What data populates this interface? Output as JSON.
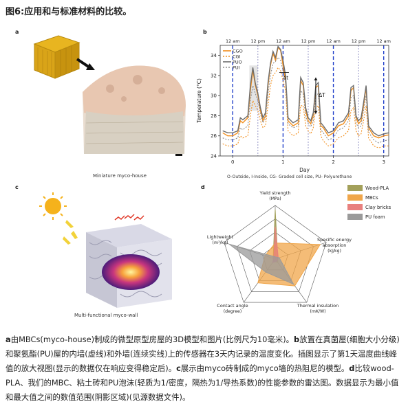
{
  "figure_title": "图6:应用和与标准材料的比较。",
  "panels": {
    "a": {
      "label": "a",
      "caption": "Miniature myco-house"
    },
    "b": {
      "label": "b",
      "footnote": "O-Outside, I-Inside, CG- Graded cell size, PU- Polyurethane"
    },
    "c": {
      "label": "c",
      "caption": "Multi-functional myco-wall"
    },
    "d": {
      "label": "d"
    }
  },
  "chart_data": [
    {
      "type": "line",
      "ylabel": "Temperature (°C)",
      "xlabel": "Day",
      "ylim": [
        24,
        35
      ],
      "yticks": [
        "24",
        "26",
        "28",
        "30",
        "32",
        "34"
      ],
      "xlim": [
        -0.25,
        3.1
      ],
      "xticks": [
        "0",
        "1",
        "2",
        "3"
      ],
      "top_labels": [
        {
          "x": 0,
          "text": "12 am"
        },
        {
          "x": 0.5,
          "text": "12 pm"
        },
        {
          "x": 1,
          "text": "12 am"
        },
        {
          "x": 1.5,
          "text": "12 pm"
        },
        {
          "x": 2,
          "text": "12 am"
        },
        {
          "x": 2.5,
          "text": "12 pm"
        },
        {
          "x": 3,
          "text": "12 am"
        }
      ],
      "annotations": [
        "δt",
        "ΔT"
      ],
      "series": [
        {
          "name": "CGO",
          "color": "#f28e1c",
          "style": "solid",
          "x": [
            -0.2,
            -0.1,
            0,
            0.1,
            0.15,
            0.2,
            0.3,
            0.35,
            0.4,
            0.45,
            0.5,
            0.55,
            0.6,
            0.65,
            0.7,
            0.75,
            0.8,
            0.85,
            0.9,
            0.95,
            1.0,
            1.05,
            1.1,
            1.2,
            1.3,
            1.35,
            1.4,
            1.45,
            1.5,
            1.55,
            1.6,
            1.65,
            1.7,
            1.75,
            1.8,
            1.9,
            2.0,
            2.1,
            2.2,
            2.3,
            2.35,
            2.4,
            2.45,
            2.5,
            2.55,
            2.6,
            2.65,
            2.7,
            2.8,
            2.9,
            3.0,
            3.1
          ],
          "y": [
            26.3,
            26.0,
            26.0,
            26.3,
            27.5,
            27.3,
            27.8,
            30.5,
            32.5,
            31.0,
            30.0,
            28.5,
            27.5,
            28.0,
            31.0,
            33.0,
            34.2,
            33.5,
            34.8,
            34.5,
            33.0,
            31.5,
            27.5,
            27.0,
            27.3,
            31.5,
            31.0,
            28.5,
            27.5,
            27.2,
            28.0,
            30.8,
            31.0,
            27.0,
            26.8,
            26.0,
            26.3,
            27.0,
            27.2,
            28.0,
            30.5,
            30.8,
            27.8,
            27.2,
            27.5,
            29.0,
            30.8,
            26.8,
            26.0,
            25.8,
            26.0,
            26.1
          ]
        },
        {
          "name": "CGI",
          "color": "#f28e1c",
          "style": "dashed",
          "x": [
            -0.2,
            -0.1,
            0,
            0.1,
            0.15,
            0.2,
            0.3,
            0.35,
            0.4,
            0.45,
            0.5,
            0.55,
            0.6,
            0.65,
            0.7,
            0.75,
            0.8,
            0.85,
            0.9,
            0.95,
            1.0,
            1.05,
            1.1,
            1.2,
            1.3,
            1.35,
            1.4,
            1.45,
            1.5,
            1.55,
            1.6,
            1.65,
            1.7,
            1.75,
            1.8,
            1.9,
            2.0,
            2.1,
            2.2,
            2.3,
            2.35,
            2.4,
            2.45,
            2.5,
            2.55,
            2.6,
            2.65,
            2.7,
            2.8,
            2.9,
            3.0,
            3.1
          ],
          "y": [
            25.2,
            25.0,
            25.0,
            25.2,
            26.0,
            25.8,
            26.0,
            28.0,
            29.5,
            29.0,
            28.5,
            27.5,
            26.8,
            27.0,
            29.0,
            31.0,
            32.0,
            32.3,
            32.8,
            32.5,
            31.5,
            30.5,
            26.5,
            26.0,
            26.3,
            29.0,
            29.0,
            27.0,
            26.5,
            26.2,
            26.8,
            28.8,
            29.0,
            26.0,
            25.5,
            25.0,
            25.2,
            25.8,
            26.0,
            26.5,
            28.5,
            28.8,
            26.5,
            26.0,
            26.2,
            27.5,
            29.0,
            25.8,
            25.0,
            24.8,
            25.0,
            25.0
          ]
        },
        {
          "name": "PUO",
          "color": "#6d6d6d",
          "style": "solid",
          "x": [
            -0.2,
            -0.1,
            0,
            0.1,
            0.15,
            0.2,
            0.3,
            0.35,
            0.4,
            0.45,
            0.5,
            0.55,
            0.6,
            0.65,
            0.7,
            0.75,
            0.8,
            0.85,
            0.9,
            0.95,
            1.0,
            1.05,
            1.1,
            1.2,
            1.3,
            1.35,
            1.4,
            1.45,
            1.5,
            1.55,
            1.6,
            1.65,
            1.7,
            1.75,
            1.8,
            1.9,
            2.0,
            2.1,
            2.2,
            2.3,
            2.35,
            2.4,
            2.45,
            2.5,
            2.55,
            2.6,
            2.65,
            2.7,
            2.8,
            2.9,
            3.0,
            3.1
          ],
          "y": [
            26.5,
            26.3,
            26.3,
            26.5,
            27.8,
            27.6,
            28.0,
            31.0,
            32.8,
            31.2,
            30.2,
            28.8,
            27.8,
            28.3,
            31.3,
            33.2,
            34.4,
            33.8,
            34.9,
            34.6,
            33.5,
            32.0,
            27.8,
            27.3,
            27.6,
            31.8,
            31.3,
            28.8,
            27.8,
            27.5,
            28.3,
            31.0,
            31.3,
            27.3,
            27.0,
            26.3,
            26.5,
            27.3,
            27.5,
            28.3,
            30.8,
            31.0,
            28.0,
            27.5,
            27.8,
            29.3,
            31.0,
            27.0,
            26.3,
            26.0,
            26.2,
            26.3
          ]
        },
        {
          "name": "PUI",
          "color": "#8a8a8a",
          "style": "dashed",
          "x": [
            -0.2,
            -0.1,
            0,
            0.1,
            0.15,
            0.2,
            0.3,
            0.35,
            0.4,
            0.45,
            0.5,
            0.55,
            0.6,
            0.65,
            0.7,
            0.75,
            0.8,
            0.85,
            0.9,
            0.95,
            1.0,
            1.05,
            1.1,
            1.2,
            1.3,
            1.35,
            1.4,
            1.45,
            1.5,
            1.55,
            1.6,
            1.65,
            1.7,
            1.75,
            1.8,
            1.9,
            2.0,
            2.1,
            2.2,
            2.3,
            2.35,
            2.4,
            2.45,
            2.5,
            2.55,
            2.6,
            2.65,
            2.7,
            2.8,
            2.9,
            3.0,
            3.1
          ],
          "y": [
            25.8,
            25.6,
            25.6,
            25.8,
            26.8,
            26.6,
            27.0,
            29.5,
            31.0,
            30.2,
            29.5,
            28.2,
            27.3,
            27.7,
            30.2,
            32.0,
            33.2,
            33.4,
            33.8,
            33.5,
            32.5,
            31.2,
            27.2,
            26.8,
            27.0,
            30.5,
            30.2,
            27.9,
            27.2,
            26.9,
            27.5,
            30.0,
            30.2,
            26.6,
            26.3,
            25.6,
            25.8,
            26.6,
            26.8,
            27.5,
            29.8,
            30.0,
            27.3,
            26.8,
            27.0,
            28.5,
            30.0,
            26.4,
            25.6,
            25.3,
            25.5,
            25.6
          ]
        }
      ]
    },
    {
      "type": "radar",
      "axes": [
        {
          "label": "Yield strength",
          "unit": "(MPa)"
        },
        {
          "label": "Specific energy",
          "label2": "absorption",
          "unit": "(kJ/kg)"
        },
        {
          "label": "Thermal insulation",
          "unit": "(mK/W)"
        },
        {
          "label": "Contact angle",
          "unit": "(degree)"
        },
        {
          "label": "Lightweight",
          "unit": "(m³/kg)"
        }
      ],
      "series": [
        {
          "name": "Wood-PLA",
          "color": "#a3a05a",
          "values": [
            0.92,
            0.05,
            0.08,
            0.05,
            0.04
          ]
        },
        {
          "name": "MBCs",
          "color": "#f0a64a",
          "values": [
            0.3,
            0.88,
            0.62,
            0.55,
            0.2
          ]
        },
        {
          "name": "Clay bricks",
          "color": "#e8807e",
          "values": [
            0.6,
            0.06,
            0.05,
            0.08,
            0.03
          ]
        },
        {
          "name": "PU foam",
          "color": "#9a9a9a",
          "values": [
            0.04,
            0.08,
            0.58,
            0.3,
            0.9
          ]
        }
      ]
    }
  ],
  "caption_parts": [
    {
      "bold": true,
      "text": "a"
    },
    {
      "bold": false,
      "text": "由MBCs(myco-house)制成的微型原型房屋的3D模型和图片(比例尺为10毫米)。"
    },
    {
      "bold": true,
      "text": "b"
    },
    {
      "bold": false,
      "text": "放置在真菌屋(细胞大小分级)和聚氨酯(PU)屋的内墙(虚线)和外墙(连续实线)上的传感器在3天内记录的温度变化。插图显示了第1天温度曲线峰值的放大视图(显示的数据仅在响应变得稳定后)。"
    },
    {
      "bold": true,
      "text": "c"
    },
    {
      "bold": false,
      "text": "展示由myco砖制成的myco墙的热阻尼的模型。"
    },
    {
      "bold": true,
      "text": "d"
    },
    {
      "bold": false,
      "text": "比较wood-PLA、我们的MBC、粘土砖和PU泡沫(轻质为1/密度，隔热为1/导热系数)的性能参数的雷达图。数据显示为最小值和最大值之间的数值范围(阴影区域)(见源数据文件)。"
    }
  ]
}
